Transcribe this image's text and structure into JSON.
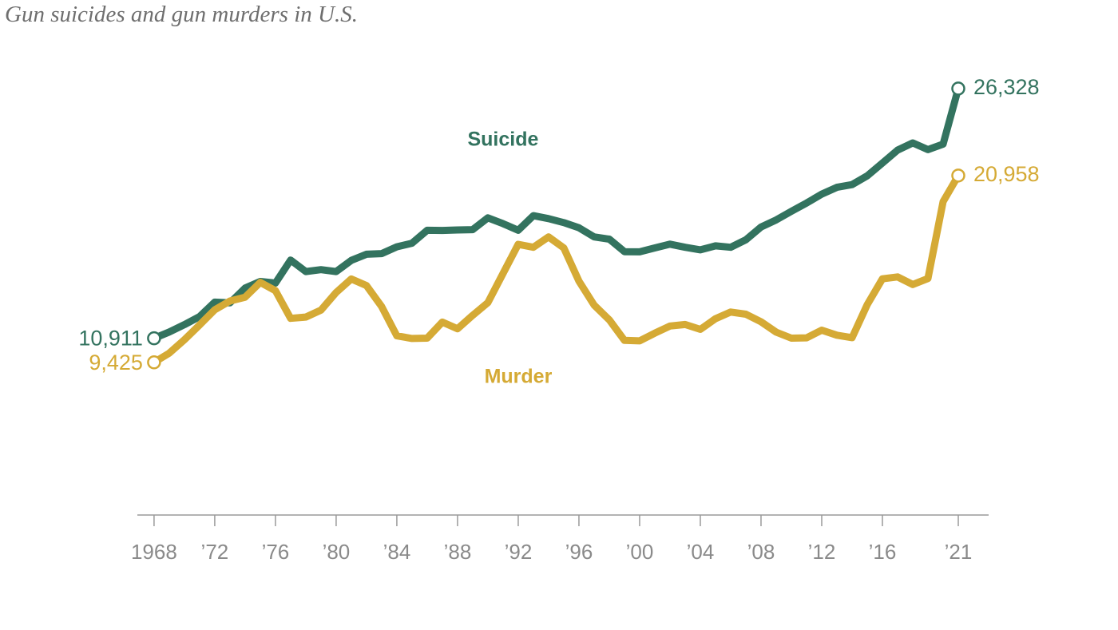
{
  "chart_data": {
    "type": "line",
    "title": "Gun suicides and gun murders in U.S.",
    "xlabel": "",
    "ylabel": "",
    "grid": false,
    "legend": "inline labels",
    "xlim": [
      1966.9,
      2023
    ],
    "ylim": [
      0,
      28000
    ],
    "x": [
      1968,
      1969,
      1970,
      1971,
      1972,
      1973,
      1974,
      1975,
      1976,
      1977,
      1978,
      1979,
      1980,
      1981,
      1982,
      1983,
      1984,
      1985,
      1986,
      1987,
      1988,
      1989,
      1990,
      1991,
      1992,
      1993,
      1994,
      1995,
      1996,
      1997,
      1998,
      1999,
      2000,
      2001,
      2002,
      2003,
      2004,
      2005,
      2006,
      2007,
      2008,
      2009,
      2010,
      2011,
      2012,
      2013,
      2014,
      2015,
      2016,
      2017,
      2018,
      2019,
      2020,
      2021
    ],
    "x_ticks": [
      {
        "value": 1968,
        "label": "1968"
      },
      {
        "value": 1972,
        "label": "’72"
      },
      {
        "value": 1976,
        "label": "’76"
      },
      {
        "value": 1980,
        "label": "’80"
      },
      {
        "value": 1984,
        "label": "’84"
      },
      {
        "value": 1988,
        "label": "’88"
      },
      {
        "value": 1992,
        "label": "’92"
      },
      {
        "value": 1996,
        "label": "’96"
      },
      {
        "value": 2000,
        "label": "’00"
      },
      {
        "value": 2004,
        "label": "’04"
      },
      {
        "value": 2008,
        "label": "’08"
      },
      {
        "value": 2012,
        "label": "’12"
      },
      {
        "value": 2016,
        "label": "’16"
      },
      {
        "value": 2021,
        "label": "’21"
      }
    ],
    "series": [
      {
        "name": "Suicide",
        "color": "#33735f",
        "values": [
          10911,
          11300,
          11750,
          12250,
          13140,
          13100,
          14010,
          14420,
          14320,
          15740,
          15030,
          15150,
          15030,
          15720,
          16100,
          16140,
          16560,
          16780,
          17580,
          17570,
          17600,
          17620,
          18350,
          17990,
          17580,
          18480,
          18300,
          18050,
          17730,
          17170,
          17030,
          16260,
          16250,
          16490,
          16720,
          16530,
          16370,
          16620,
          16530,
          16990,
          17780,
          18220,
          18750,
          19260,
          19810,
          20230,
          20400,
          20940,
          21730,
          22530,
          22970,
          22560,
          22900,
          26328
        ],
        "start_label": "10,911",
        "end_label": "26,328",
        "name_label_anchor": {
          "x": 1991,
          "y": 22800
        }
      },
      {
        "name": "Murder",
        "color": "#d5aa35",
        "values": [
          9425,
          9990,
          10820,
          11730,
          12670,
          13210,
          13450,
          14360,
          13850,
          12140,
          12220,
          12650,
          13740,
          14570,
          14170,
          12870,
          11060,
          10900,
          10920,
          11910,
          11500,
          12330,
          13110,
          14910,
          16710,
          16530,
          17170,
          16490,
          14440,
          12960,
          12050,
          10780,
          10750,
          11230,
          11670,
          11760,
          11460,
          12120,
          12530,
          12400,
          11930,
          11290,
          10920,
          10940,
          11410,
          11100,
          10950,
          12990,
          14580,
          14700,
          14230,
          14600,
          19350,
          20958
        ],
        "start_label": "9,425",
        "end_label": "20,958",
        "name_label_anchor": {
          "x": 1992,
          "y": 8150
        }
      }
    ]
  }
}
